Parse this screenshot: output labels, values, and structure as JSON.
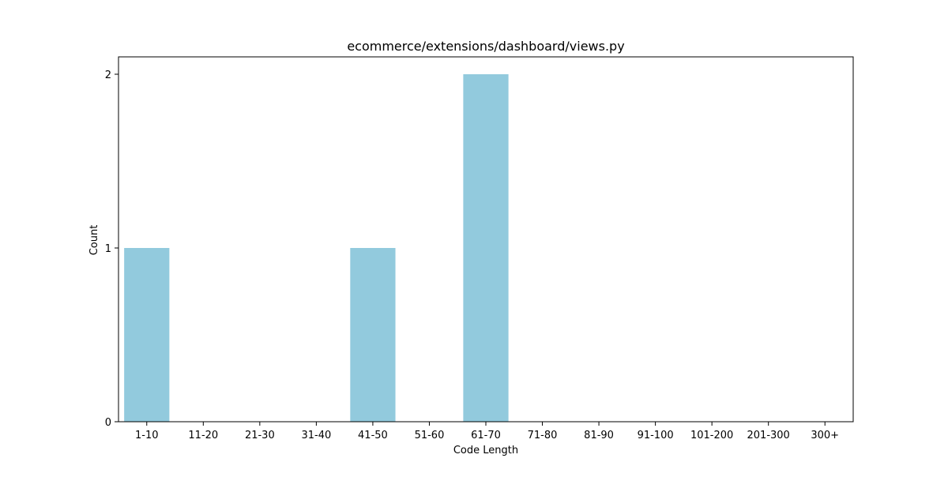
{
  "chart_data": {
    "type": "bar",
    "title": "ecommerce/extensions/dashboard/views.py",
    "xlabel": "Code Length",
    "ylabel": "Count",
    "categories": [
      "1-10",
      "11-20",
      "21-30",
      "31-40",
      "41-50",
      "51-60",
      "61-70",
      "71-80",
      "81-90",
      "91-100",
      "101-200",
      "201-300",
      "300+"
    ],
    "values": [
      1,
      0,
      0,
      0,
      1,
      0,
      2,
      0,
      0,
      0,
      0,
      0,
      0
    ],
    "ylim": [
      0,
      2.1
    ],
    "yticks": [
      0,
      1,
      2
    ],
    "grid": false,
    "legend": "none",
    "bar_color": "#92cadd"
  }
}
